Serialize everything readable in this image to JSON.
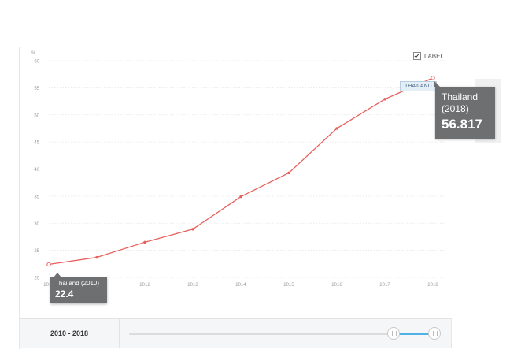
{
  "chart_data": {
    "type": "line",
    "ylabel": "%",
    "ylim": [
      20,
      60
    ],
    "yticks": [
      20,
      25,
      30,
      35,
      40,
      45,
      50,
      55,
      60
    ],
    "x": [
      2010,
      2011,
      2012,
      2013,
      2014,
      2015,
      2016,
      2017,
      2018
    ],
    "x_ticklabels": [
      "2010",
      "2011",
      "2012",
      "2013",
      "2014",
      "2015",
      "2016",
      "2017",
      "2018"
    ],
    "series": [
      {
        "name": "THAILAND",
        "color": "#e8605d",
        "values": [
          22.4,
          23.7,
          26.5,
          28.9,
          34.9,
          39.3,
          47.5,
          52.9,
          56.817
        ]
      }
    ],
    "grid": true
  },
  "label_toggle": {
    "label": "LABEL",
    "checked": true
  },
  "series_tag": "THAILAND",
  "tooltip_end": {
    "name": "Thailand",
    "year": "(2018)",
    "value": "56.817"
  },
  "tooltip_start": {
    "name": "Thailand (2010)",
    "value": "22.4"
  },
  "range": {
    "label": "2010 - 2018",
    "start": 2010,
    "end": 2018
  }
}
